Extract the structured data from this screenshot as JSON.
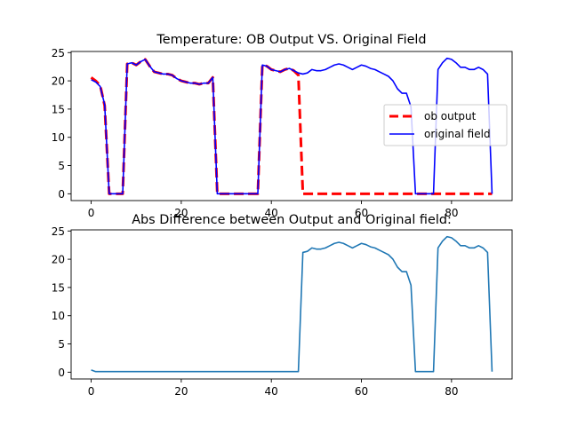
{
  "chart_data": [
    {
      "type": "line",
      "title": "Temperature: OB Output VS. Original Field",
      "xlabel": "",
      "ylabel": "",
      "xlim": [
        -4.45,
        93.45
      ],
      "ylim": [
        -1.2,
        25.2
      ],
      "xticks": [
        0,
        20,
        40,
        60,
        80
      ],
      "yticks": [
        0,
        5,
        10,
        15,
        20,
        25
      ],
      "legend": {
        "position": "center-right"
      },
      "series": [
        {
          "name": "ob output",
          "color": "#ff0000",
          "style": "dashed",
          "x": [
            0,
            1,
            2,
            3,
            4,
            5,
            6,
            7,
            8,
            9,
            10,
            11,
            12,
            13,
            14,
            15,
            16,
            17,
            18,
            19,
            20,
            21,
            22,
            23,
            24,
            25,
            26,
            27,
            28,
            29,
            30,
            31,
            32,
            33,
            34,
            35,
            36,
            37,
            38,
            39,
            40,
            41,
            42,
            43,
            44,
            45,
            46,
            47,
            48,
            49,
            50,
            51,
            52,
            53,
            54,
            55,
            56,
            57,
            58,
            59,
            60,
            61,
            62,
            63,
            64,
            65,
            66,
            67,
            68,
            69,
            70,
            71,
            72,
            73,
            74,
            75,
            76,
            77,
            78,
            79,
            80,
            81,
            82,
            83,
            84,
            85,
            86,
            87,
            88,
            89
          ],
          "values": [
            20.6,
            20.0,
            19.2,
            15.6,
            0,
            0,
            0,
            0,
            23.0,
            23.2,
            22.8,
            23.4,
            23.8,
            22.6,
            21.6,
            21.4,
            21.2,
            21.2,
            21.0,
            20.4,
            20.0,
            19.8,
            19.6,
            19.6,
            19.4,
            19.6,
            19.6,
            20.6,
            0,
            0,
            0,
            0,
            0,
            0,
            0,
            0,
            0,
            0,
            22.8,
            22.6,
            22.0,
            21.8,
            21.6,
            22.0,
            22.2,
            21.8,
            21.0,
            0,
            0,
            0,
            0,
            0,
            0,
            0,
            0,
            0,
            0,
            0,
            0,
            0,
            0,
            0,
            0,
            0,
            0,
            0,
            0,
            0,
            0,
            0,
            0,
            0,
            0,
            0,
            0,
            0,
            0,
            0,
            0,
            0,
            0,
            0,
            0,
            0,
            0,
            0,
            0,
            0,
            0,
            0
          ]
        },
        {
          "name": "original field",
          "color": "#0000ff",
          "style": "solid",
          "x": [
            0,
            1,
            2,
            3,
            4,
            5,
            6,
            7,
            8,
            9,
            10,
            11,
            12,
            13,
            14,
            15,
            16,
            17,
            18,
            19,
            20,
            21,
            22,
            23,
            24,
            25,
            26,
            27,
            28,
            29,
            30,
            31,
            32,
            33,
            34,
            35,
            36,
            37,
            38,
            39,
            40,
            41,
            42,
            43,
            44,
            45,
            46,
            47,
            48,
            49,
            50,
            51,
            52,
            53,
            54,
            55,
            56,
            57,
            58,
            59,
            60,
            61,
            62,
            63,
            64,
            65,
            66,
            67,
            68,
            69,
            70,
            71,
            72,
            73,
            74,
            75,
            76,
            77,
            78,
            79,
            80,
            81,
            82,
            83,
            84,
            85,
            86,
            87,
            88,
            89
          ],
          "values": [
            20.2,
            19.8,
            19.0,
            15.8,
            0,
            0,
            0,
            0,
            23.0,
            23.2,
            22.8,
            23.4,
            23.8,
            22.6,
            21.6,
            21.4,
            21.2,
            21.2,
            21.0,
            20.4,
            20.0,
            19.8,
            19.6,
            19.6,
            19.4,
            19.6,
            19.6,
            20.6,
            0,
            0,
            0,
            0,
            0,
            0,
            0,
            0,
            0,
            0,
            22.8,
            22.6,
            22.0,
            21.8,
            21.6,
            22.0,
            22.2,
            21.8,
            21.4,
            21.2,
            21.4,
            22.0,
            21.8,
            21.8,
            22.0,
            22.4,
            22.8,
            23.0,
            22.8,
            22.4,
            22.0,
            22.4,
            22.8,
            22.6,
            22.2,
            22.0,
            21.6,
            21.2,
            20.8,
            20.0,
            18.6,
            17.8,
            17.8,
            15.4,
            0,
            0,
            0,
            0,
            0,
            22.0,
            23.2,
            24.0,
            23.8,
            23.2,
            22.4,
            22.4,
            22.0,
            22.0,
            22.4,
            22.0,
            21.2,
            0
          ]
        }
      ]
    },
    {
      "type": "line",
      "title": "Abs Difference between Output and Original field:",
      "xlabel": "",
      "ylabel": "",
      "xlim": [
        -4.45,
        93.45
      ],
      "ylim": [
        -1.2,
        25.2
      ],
      "xticks": [
        0,
        20,
        40,
        60,
        80
      ],
      "yticks": [
        0,
        5,
        10,
        15,
        20,
        25
      ],
      "series": [
        {
          "color": "#1f77b4",
          "style": "solid",
          "x": [
            0,
            1,
            2,
            3,
            4,
            5,
            6,
            7,
            8,
            9,
            10,
            11,
            12,
            13,
            14,
            15,
            16,
            17,
            18,
            19,
            20,
            21,
            22,
            23,
            24,
            25,
            26,
            27,
            28,
            29,
            30,
            31,
            32,
            33,
            34,
            35,
            36,
            37,
            38,
            39,
            40,
            41,
            42,
            43,
            44,
            45,
            46,
            47,
            48,
            49,
            50,
            51,
            52,
            53,
            54,
            55,
            56,
            57,
            58,
            59,
            60,
            61,
            62,
            63,
            64,
            65,
            66,
            67,
            68,
            69,
            70,
            71,
            72,
            73,
            74,
            75,
            76,
            77,
            78,
            79,
            80,
            81,
            82,
            83,
            84,
            85,
            86,
            87,
            88,
            89
          ],
          "values": [
            0.4,
            0.1,
            0.1,
            0.1,
            0.1,
            0.1,
            0.1,
            0.1,
            0.1,
            0.1,
            0.1,
            0.1,
            0.1,
            0.1,
            0.1,
            0.1,
            0.1,
            0.1,
            0.1,
            0.1,
            0.1,
            0.1,
            0.1,
            0.1,
            0.1,
            0.1,
            0.1,
            0.1,
            0.1,
            0.1,
            0.1,
            0.1,
            0.1,
            0.1,
            0.1,
            0.1,
            0.1,
            0.1,
            0.1,
            0.1,
            0.1,
            0.1,
            0.1,
            0.1,
            0.1,
            0.1,
            0.1,
            21.2,
            21.4,
            22.0,
            21.8,
            21.8,
            22.0,
            22.4,
            22.8,
            23.0,
            22.8,
            22.4,
            22.0,
            22.4,
            22.8,
            22.6,
            22.2,
            22.0,
            21.6,
            21.2,
            20.8,
            20.0,
            18.6,
            17.8,
            17.8,
            15.4,
            0.1,
            0.1,
            0.1,
            0.1,
            0.1,
            22.0,
            23.2,
            24.0,
            23.8,
            23.2,
            22.4,
            22.4,
            22.0,
            22.0,
            22.4,
            22.0,
            21.2,
            0.1
          ]
        }
      ]
    }
  ]
}
